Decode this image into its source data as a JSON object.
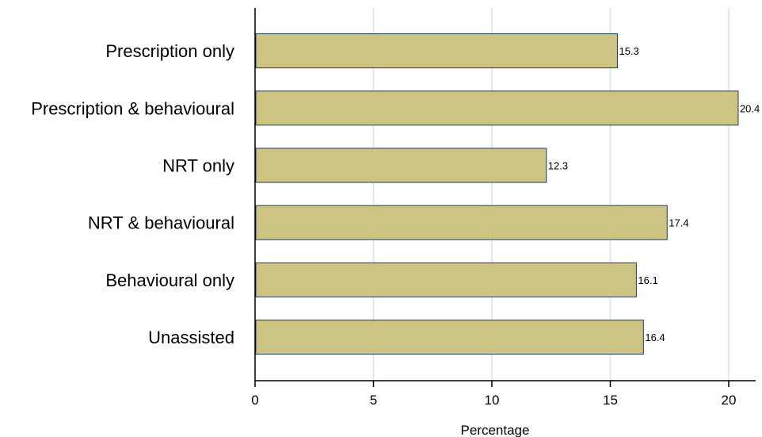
{
  "chart_data": {
    "type": "bar",
    "orientation": "horizontal",
    "categories": [
      "Prescription only",
      "Prescription & behavioural",
      "NRT only",
      "NRT & behavioural",
      "Behavioural only",
      "Unassisted"
    ],
    "values": [
      15.3,
      20.4,
      12.3,
      17.4,
      16.1,
      16.4
    ],
    "value_labels": [
      "15.3",
      "20.4",
      "12.3",
      "17.4",
      "16.1",
      "16.4"
    ],
    "title": "",
    "xlabel": "Percentage",
    "ylabel": "",
    "xlim": [
      0,
      21.1
    ],
    "xticks": [
      0,
      5,
      10,
      15,
      20
    ],
    "xtick_labels": [
      "0",
      "5",
      "10",
      "15",
      "20"
    ],
    "grid": "vertical",
    "legend": "none",
    "colors": {
      "bar_fill": "#cdc483",
      "bar_stroke": "#1f3f5a",
      "grid": "#dfeaf0",
      "axis": "#000000"
    }
  }
}
